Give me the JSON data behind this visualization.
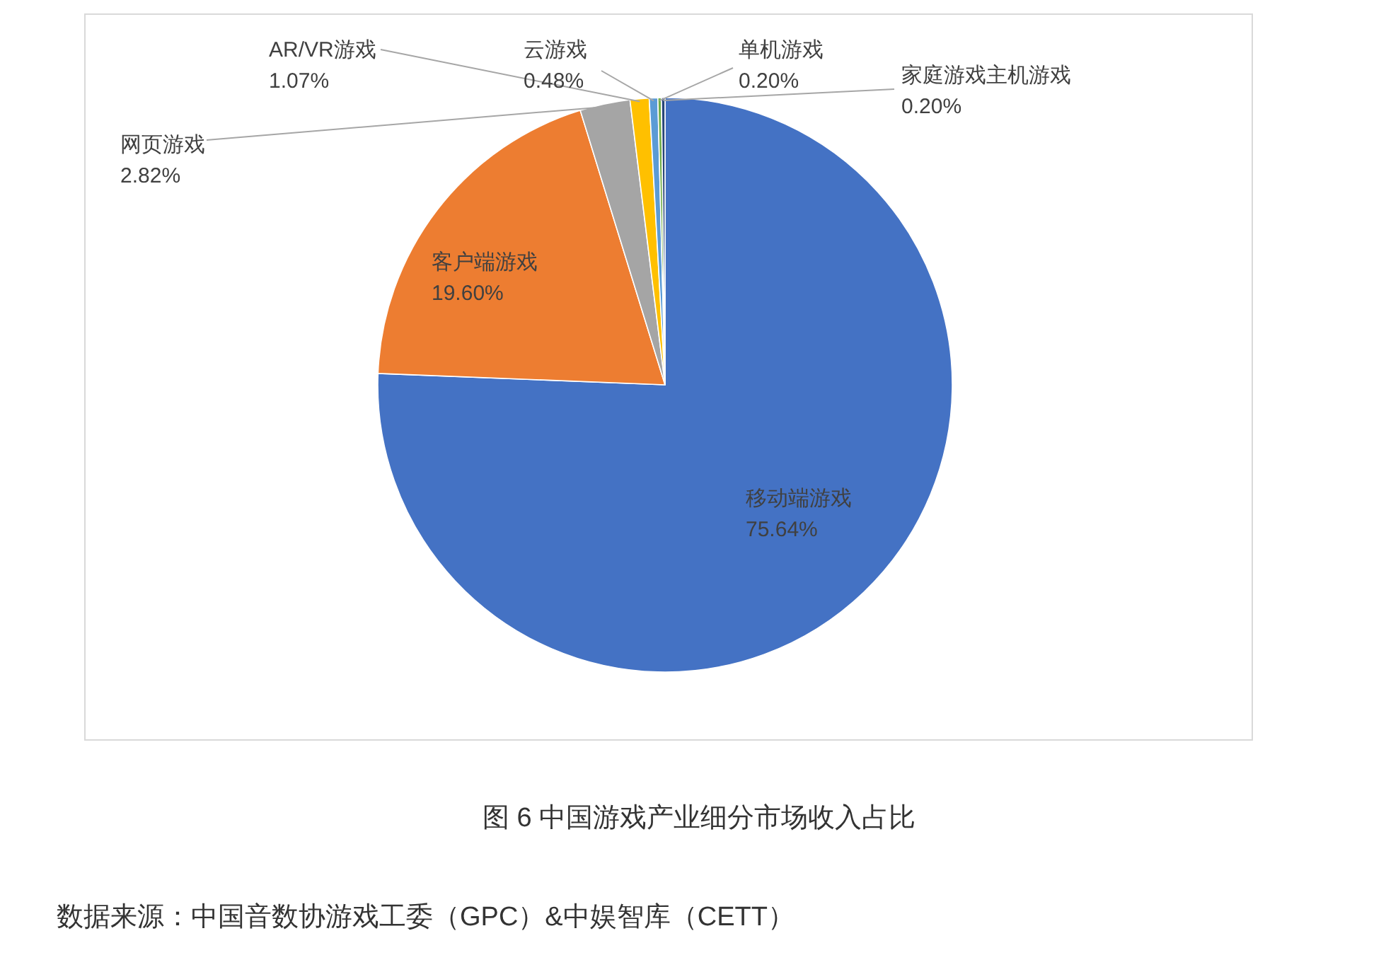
{
  "chart_data": {
    "type": "pie",
    "title": "图 6  中国游戏产业细分市场收入占比",
    "categories": [
      "移动端游戏",
      "客户端游戏",
      "网页游戏",
      "AR/VR游戏",
      "云游戏",
      "单机游戏",
      "家庭游戏主机游戏"
    ],
    "values": [
      75.64,
      19.6,
      2.82,
      1.07,
      0.48,
      0.2,
      0.2
    ],
    "value_labels": [
      "75.64%",
      "19.60%",
      "2.82%",
      "1.07%",
      "0.48%",
      "0.20%",
      "0.20%"
    ],
    "colors": [
      "#4472c4",
      "#ed7d31",
      "#a5a5a5",
      "#ffc000",
      "#5b9bd5",
      "#70ad47",
      "#264478"
    ],
    "annotations": [
      "数据来源：中国音数协游戏工委（GPC）&中娱智库（CETT）"
    ]
  }
}
